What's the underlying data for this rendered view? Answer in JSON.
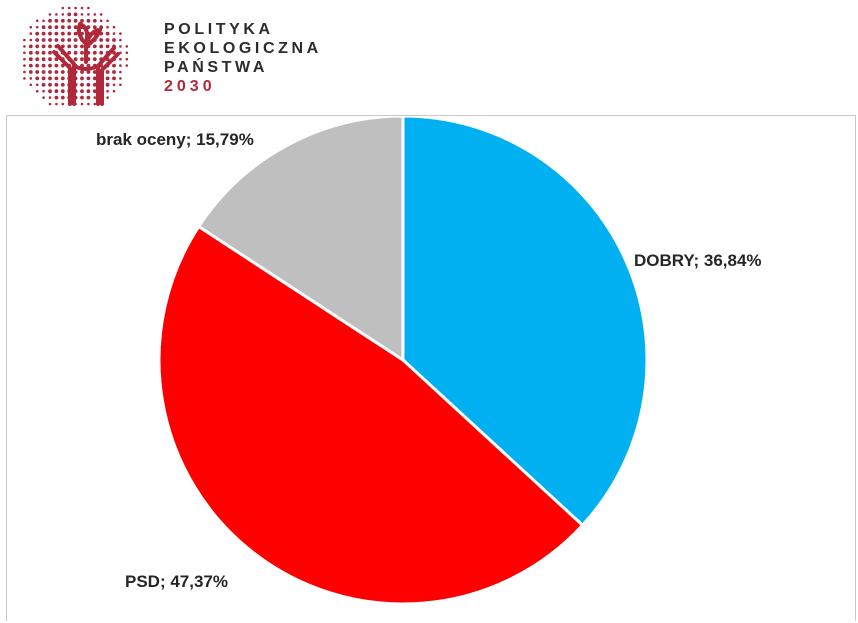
{
  "logo": {
    "line1": "POLITYKA",
    "line2": "EKOLOGICZNA",
    "line3": "PAŃSTWA",
    "year": "2030",
    "brand_color": "#b0283a"
  },
  "chart_data": {
    "type": "pie",
    "start_angle_deg": 0,
    "direction": "clockwise",
    "slices": [
      {
        "label": "DOBRY",
        "value": 36.84,
        "display": "DOBRY; 36,84%",
        "color": "#00b0f0"
      },
      {
        "label": "PSD",
        "value": 47.37,
        "display": "PSD; 47,37%",
        "color": "#ff0000"
      },
      {
        "label": "brak oceny",
        "value": 15.79,
        "display": "brak oceny; 15,79%",
        "color": "#bfbfbf"
      }
    ]
  }
}
